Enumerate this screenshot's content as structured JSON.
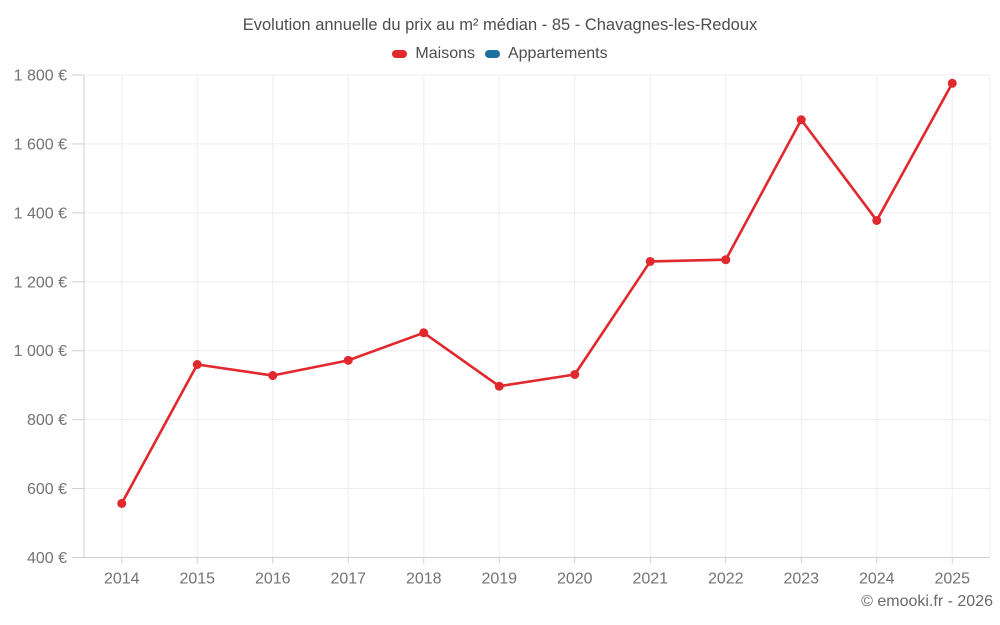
{
  "attribution": "© emooki.fr - 2026",
  "chart_data": {
    "type": "line",
    "title": "Evolution annuelle du prix au m² médian - 85 - Chavagnes-les-Redoux",
    "categories": [
      "2014",
      "2015",
      "2016",
      "2017",
      "2018",
      "2019",
      "2020",
      "2021",
      "2022",
      "2023",
      "2024",
      "2025"
    ],
    "series": [
      {
        "name": "Maisons",
        "color": "#e0282d",
        "values": [
          557,
          960,
          928,
          972,
          1052,
          897,
          931,
          1259,
          1264,
          1670,
          1378,
          1776
        ]
      },
      {
        "name": "Appartements",
        "color": "#1c70a0",
        "values": []
      }
    ],
    "xlabel": "",
    "ylabel": "",
    "ylim": [
      400,
      1800
    ],
    "ytick_step": 200,
    "ytick_labels": [
      "400 €",
      "600 €",
      "800 €",
      "1 000 €",
      "1 200 €",
      "1 400 €",
      "1 600 €",
      "1 800 €"
    ],
    "grid": true,
    "legend_position": "top",
    "colors": {
      "gridline": "#ededed",
      "axis_line": "#cfcfcf",
      "tick_label": "#737373",
      "title_text": "#4d4d4d"
    }
  }
}
